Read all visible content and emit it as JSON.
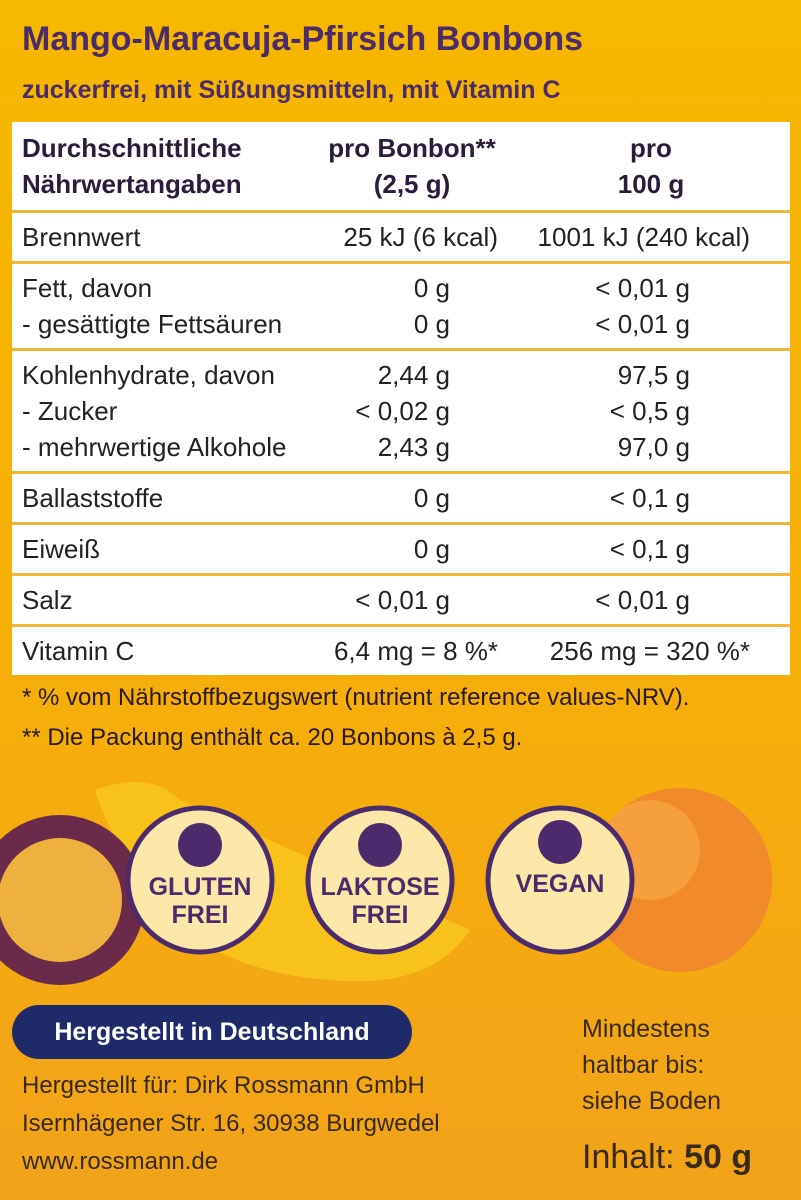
{
  "header": {
    "title": "Mango-Maracuja-Pfirsich Bonbons",
    "subtitle": "zuckerfrei, mit Süßungsmitteln, mit Vitamin C"
  },
  "table": {
    "columns": [
      [
        "Durchschnittliche",
        "Nährwertangaben"
      ],
      [
        "pro Bonbon**",
        "(2,5 g)"
      ],
      [
        "pro",
        "100 g"
      ]
    ],
    "groups": [
      [
        [
          "Brennwert",
          "25 kJ (6 kcal)",
          "1001 kJ (240 kcal)"
        ]
      ],
      [
        [
          "Fett, davon",
          "0 g",
          "< 0,01 g"
        ],
        [
          "- gesättigte Fettsäuren",
          "0 g",
          "< 0,01 g"
        ]
      ],
      [
        [
          "Kohlenhydrate, davon",
          "2,44 g",
          "97,5 g"
        ],
        [
          "- Zucker",
          "< 0,02 g",
          "< 0,5 g"
        ],
        [
          "- mehrwertige Alkohole",
          "2,43 g",
          "97,0 g"
        ]
      ],
      [
        [
          "Ballaststoffe",
          "0 g",
          "< 0,1 g"
        ]
      ],
      [
        [
          "Eiweiß",
          "0 g",
          "< 0,1 g"
        ]
      ],
      [
        [
          "Salz",
          "< 0,01 g",
          "< 0,01 g"
        ]
      ],
      [
        [
          "Vitamin C",
          "6,4 mg = 8 %*",
          "256 mg = 320 %*"
        ]
      ]
    ]
  },
  "footnotes": [
    "* % vom Nährstoffbezugswert (nutrient reference values-NRV).",
    "** Die Packung enthält ca. 20 Bonbons à 2,5 g."
  ],
  "badges": [
    [
      "GLUTEN",
      "FREI"
    ],
    [
      "LAKTOSE",
      "FREI"
    ],
    [
      "VEGAN"
    ]
  ],
  "origin": "Hergestellt in Deutschland",
  "address": [
    "Hergestellt für: Dirk Rossmann GmbH",
    "Isernhägener Str. 16, 30938 Burgwedel",
    "www.rossmann.de"
  ],
  "best_before": [
    "Mindestens",
    "haltbar bis:",
    "siehe Boden"
  ],
  "content": {
    "label": "Inhalt:",
    "value": "50 g"
  }
}
